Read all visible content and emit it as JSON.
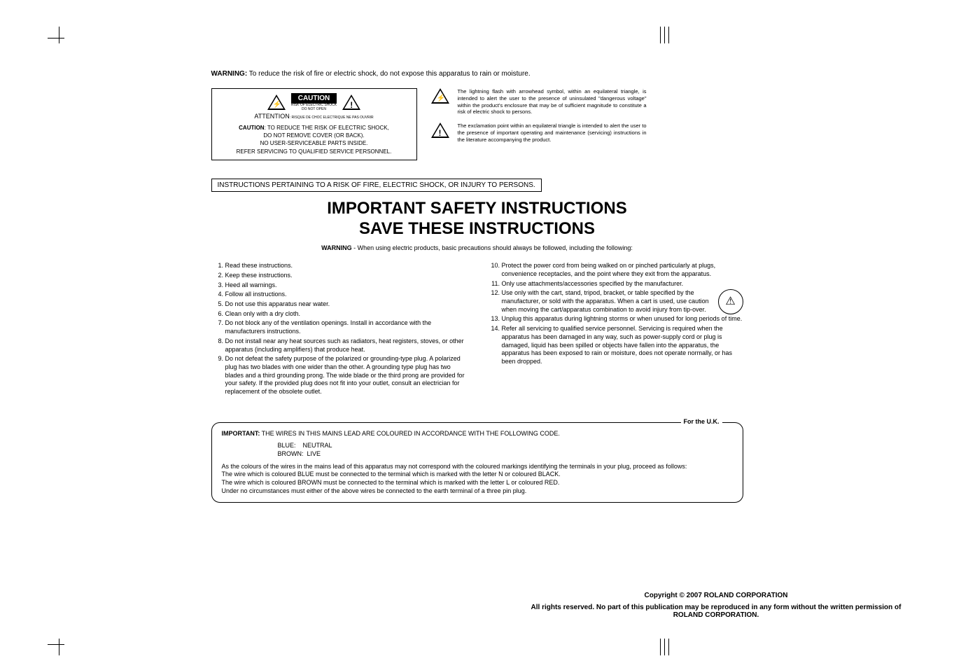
{
  "top_warning_label": "WARNING:",
  "top_warning_text": " To reduce the risk of fire or electric shock, do not expose this apparatus to rain or moisture.",
  "caution_label": "CAUTION",
  "risk_line1": "RISK OF ELECTRIC SHOCK",
  "risk_line2": "DO NOT OPEN",
  "attention_big": "ATTENTION",
  "attention_small": ": RISQUE DE CHOC ELECTRIQUE NE PAS OUVRIR",
  "caution_body_bold": "CAUTION",
  "caution_body_l1": ": TO REDUCE THE RISK OF ELECTRIC SHOCK,",
  "caution_body_l2": "DO NOT REMOVE COVER (OR BACK).",
  "caution_body_l3": "NO USER-SERVICEABLE PARTS INSIDE.",
  "caution_body_l4": "REFER SERVICING TO QUALIFIED SERVICE PERSONNEL.",
  "symbol1": "The lightning flash with arrowhead symbol, within an equilateral triangle, is intended to alert the user to the presence of uninsulated \"dangerous voltage\" within the product's enclosure that may be of sufficient magnitude to constitute a risk of electric shock to persons.",
  "symbol2": "The exclamation point within an equilateral triangle is intended to alert the user to the presence of important operating and maintenance (servicing) instructions in the literature accompanying the product.",
  "instr_box": "INSTRUCTIONS PERTAINING TO A RISK OF FIRE, ELECTRIC SHOCK, OR INJURY TO PERSONS.",
  "title_l1": "IMPORTANT SAFETY INSTRUCTIONS",
  "title_l2": "SAVE THESE INSTRUCTIONS",
  "sub_warn_bold": "WARNING",
  "sub_warn_text": " - When using electric products, basic precautions should always be followed, including the following:",
  "left_items": [
    "Read these instructions.",
    "Keep these instructions.",
    "Heed all warnings.",
    "Follow all instructions.",
    "Do not use this apparatus near water.",
    "Clean only with a dry cloth.",
    "Do not block any of the ventilation openings. Install in accordance with the manufacturers instructions.",
    "Do not install near any heat sources such as radiators, heat registers, stoves, or other apparatus (including amplifiers) that produce heat.",
    "Do not defeat the safety purpose of the polarized or grounding-type plug. A polarized plug has two blades with one wider than the other. A grounding type plug has two blades and a third grounding prong. The wide blade or the third prong are provided for your safety. If the provided plug does not fit into your outlet, consult an electrician for replacement of the obsolete outlet."
  ],
  "right_items": [
    "Protect the power cord from being walked on or pinched particularly at plugs, convenience receptacles, and the point where they exit from the apparatus.",
    "Only use attachments/accessories specified by the manufacturer.",
    "Use only with the cart, stand, tripod, bracket, or table specified by the manufacturer, or sold with the apparatus. When a cart is used, use caution when moving the cart/apparatus combination to avoid injury from tip-over.",
    "Unplug this apparatus during lightning storms or when unused for long periods of time.",
    "Refer all servicing to qualified service personnel. Servicing is required when the apparatus has been damaged in any way, such as power-supply cord or plug is damaged, liquid has been spilled or objects have fallen into the apparatus, the apparatus has been exposed to rain or moisture, does not operate normally, or has been dropped."
  ],
  "uk_label": "For the U.K.",
  "uk_important": "IMPORTANT:",
  "uk_important_text": " THE WIRES IN THIS MAINS LEAD ARE COLOURED IN ACCORDANCE WITH THE FOLLOWING CODE.",
  "wire_blue": "BLUE:",
  "wire_blue_v": "NEUTRAL",
  "wire_brown": "BROWN:",
  "wire_brown_v": "LIVE",
  "uk_para": "As the colours of the wires in the mains lead of this apparatus may not correspond with the coloured markings identifying the terminals in your plug, proceed as follows:",
  "uk_p2": "The wire which is coloured BLUE must be connected to the terminal which is marked with the letter N or coloured BLACK.",
  "uk_p3": "The wire which is coloured BROWN must be connected to the terminal which is marked with the letter L or coloured RED.",
  "uk_p4": "Under no circumstances must either of the above wires be connected to the earth terminal of a three pin plug.",
  "copyright_l1": "Copyright © 2007  ROLAND CORPORATION",
  "copyright_l2": "All rights reserved. No part of this publication may be reproduced in any form without the written permission of ROLAND CORPORATION."
}
